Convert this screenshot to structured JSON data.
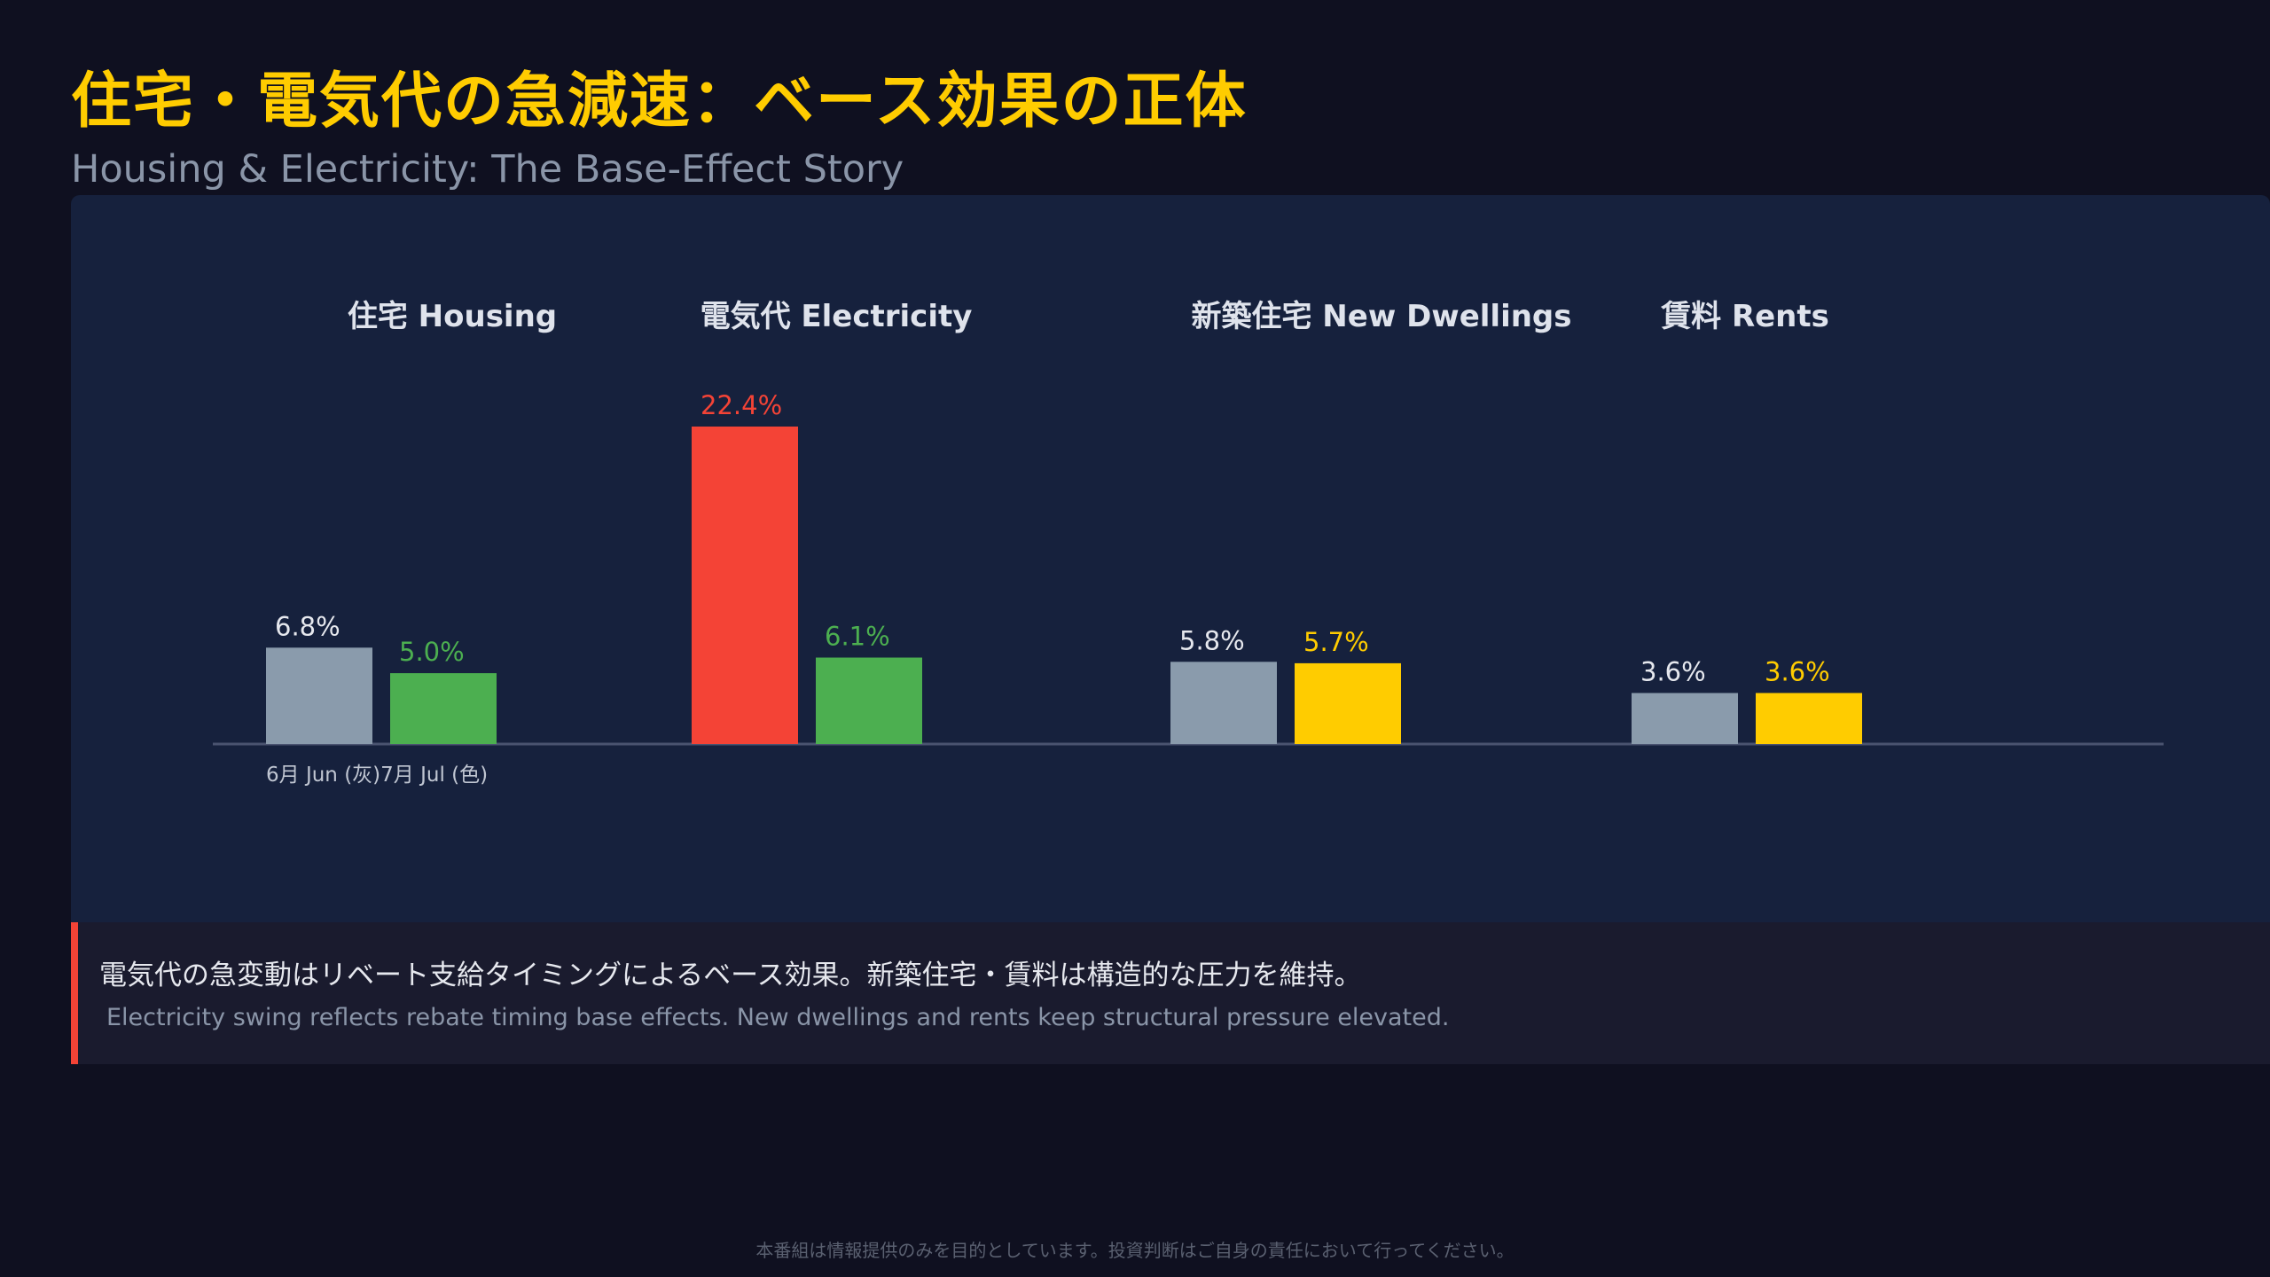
{
  "header": {
    "title": "住宅・電気代の急減速：ベース効果の正体",
    "subtitle": "Housing & Electricity: The Base-Effect Story"
  },
  "chart_data": {
    "type": "bar",
    "categories": [
      "住宅 Housing",
      "電気代 Electricity",
      "新築住宅 New Dwellings",
      "賃料 Rents"
    ],
    "series": [
      {
        "name": "6月 Jun (灰)",
        "values": [
          6.8,
          22.4,
          5.8,
          3.6
        ]
      },
      {
        "name": "7月 Jul (色)",
        "values": [
          5.0,
          6.1,
          5.7,
          3.6
        ]
      }
    ],
    "value_labels": [
      [
        "6.8%",
        "5.0%"
      ],
      [
        "22.4%",
        "6.1%"
      ],
      [
        "5.8%",
        "5.7%"
      ],
      [
        "3.6%",
        "3.6%"
      ]
    ],
    "bar_colors": [
      [
        "#8a9bac",
        "#4caf50"
      ],
      [
        "#f44336",
        "#4caf50"
      ],
      [
        "#8a9bac",
        "#ffcc00"
      ],
      [
        "#8a9bac",
        "#ffcc00"
      ]
    ],
    "label_colors": [
      [
        "#e6e8ee",
        "#4caf50"
      ],
      [
        "#f44336",
        "#4caf50"
      ],
      [
        "#e6e8ee",
        "#ffcc00"
      ],
      [
        "#e6e8ee",
        "#ffcc00"
      ]
    ],
    "ylim": [
      0,
      22.4
    ],
    "legend_position": "bottom-left",
    "grid": false
  },
  "note": {
    "jp": "電気代の急変動はリベート支給タイミングによるベース効果。新築住宅・賃料は構造的な圧力を維持。",
    "en": "Electricity swing reflects rebate timing base effects. New dwellings and rents keep structural pressure elevated."
  },
  "footer": {
    "disclaimer": "本番組は情報提供のみを目的としています。投資判断はご自身の責任において行ってください。"
  },
  "colors": {
    "background": "#0f1020",
    "panel": "#16213d",
    "accent": "#ffcc00",
    "red": "#f44336",
    "green": "#4caf50",
    "gray": "#8a9bac"
  }
}
